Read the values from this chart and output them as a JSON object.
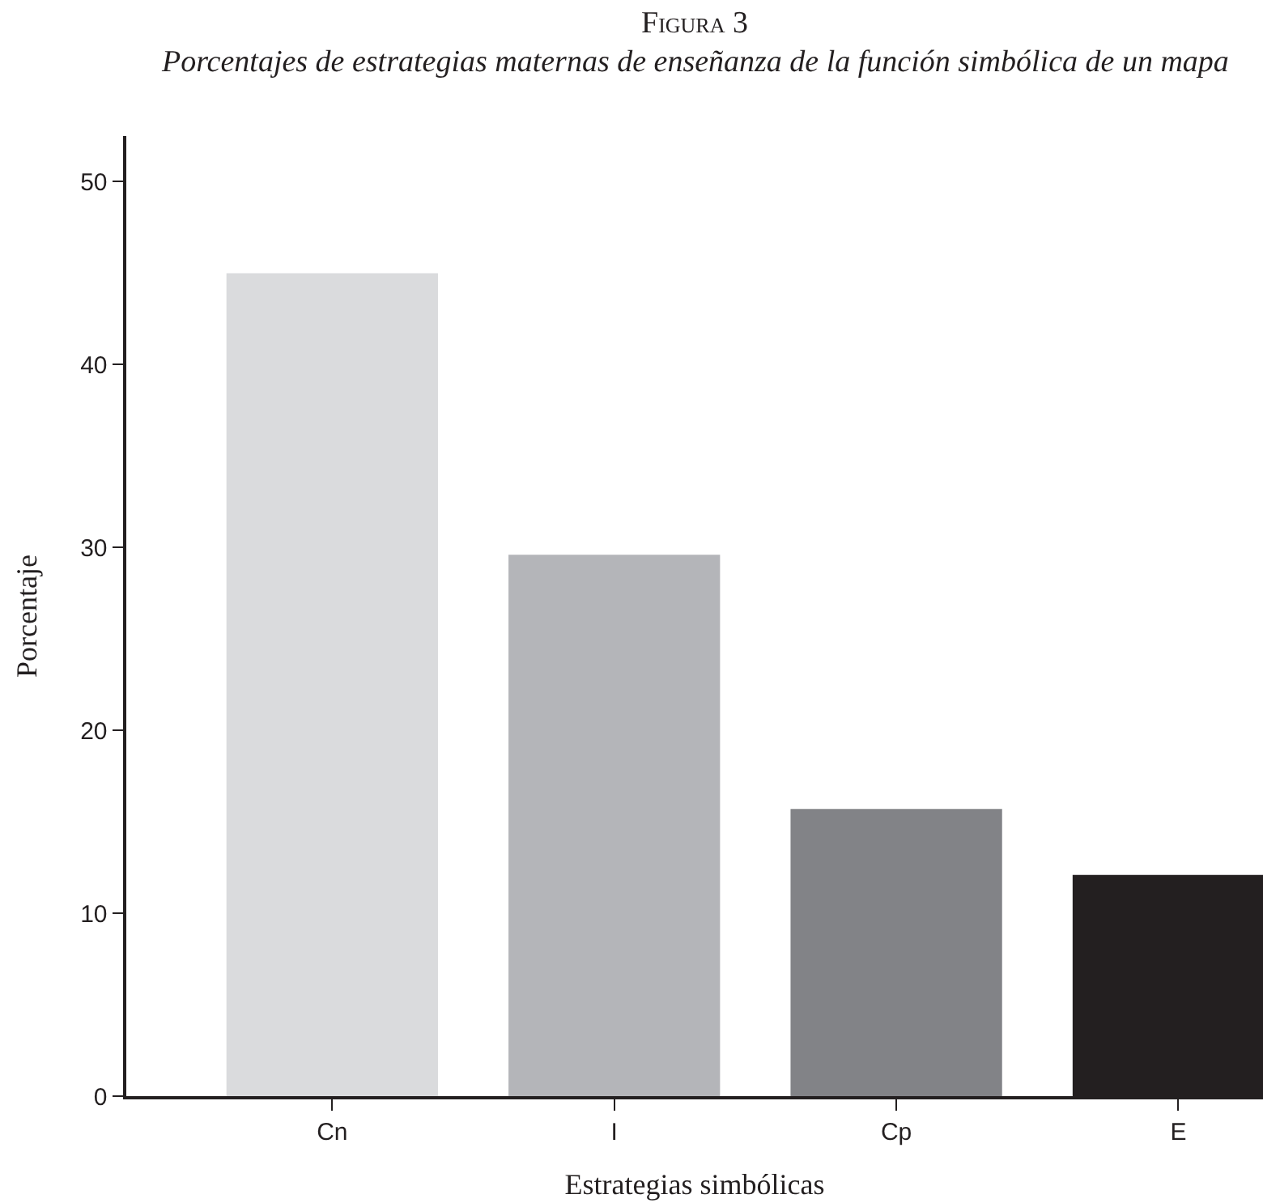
{
  "chart_data": {
    "type": "bar",
    "title": "Figura 3",
    "subtitle": "Porcentajes de estrategias maternas de enseñanza de la función simbólica de un mapa",
    "xlabel": "Estrategias simbólicas",
    "ylabel": "Porcentaje",
    "categories": [
      "Cn",
      "I",
      "Cp",
      "E"
    ],
    "values": [
      45,
      29.6,
      15.7,
      12.1
    ],
    "colors": [
      "#dadbdd",
      "#b4b5b9",
      "#828387",
      "#231f20"
    ],
    "ylim": [
      0,
      52.5
    ],
    "yticks": [
      0,
      10,
      20,
      30,
      40,
      50
    ]
  }
}
